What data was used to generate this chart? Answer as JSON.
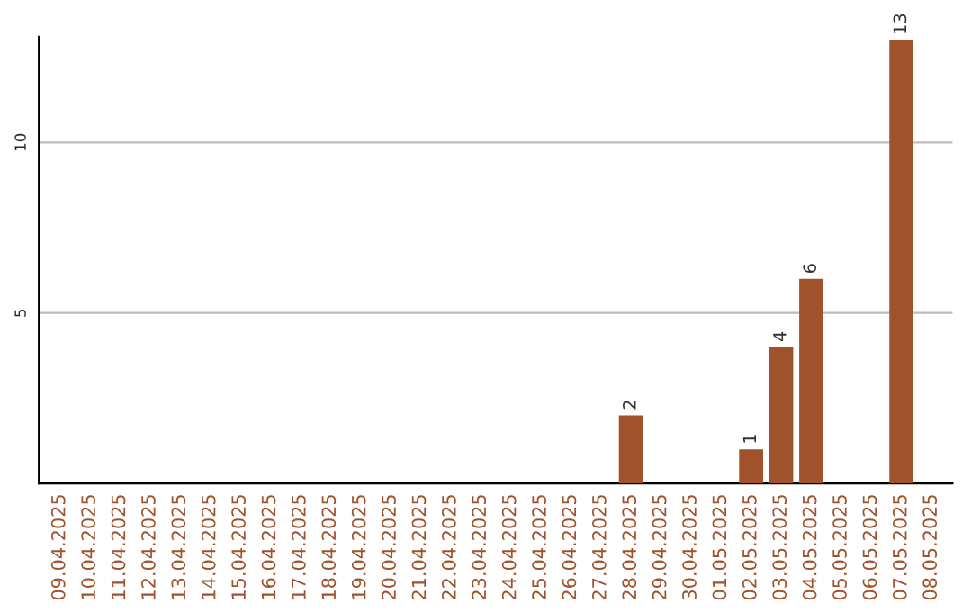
{
  "chart_data": {
    "type": "bar",
    "categories": [
      "09.04.2025",
      "10.04.2025",
      "11.04.2025",
      "12.04.2025",
      "13.04.2025",
      "14.04.2025",
      "15.04.2025",
      "16.04.2025",
      "17.04.2025",
      "18.04.2025",
      "19.04.2025",
      "20.04.2025",
      "21.04.2025",
      "22.04.2025",
      "23.04.2025",
      "24.04.2025",
      "25.04.2025",
      "26.04.2025",
      "27.04.2025",
      "28.04.2025",
      "29.04.2025",
      "30.04.2025",
      "01.05.2025",
      "02.05.2025",
      "03.05.2025",
      "04.05.2025",
      "05.05.2025",
      "06.05.2025",
      "07.05.2025",
      "08.05.2025"
    ],
    "values": [
      null,
      null,
      null,
      null,
      null,
      null,
      null,
      null,
      null,
      null,
      null,
      null,
      null,
      null,
      null,
      null,
      null,
      null,
      null,
      2,
      null,
      null,
      null,
      1,
      4,
      6,
      null,
      null,
      13,
      null
    ],
    "value_labels": [
      null,
      null,
      null,
      null,
      null,
      null,
      null,
      null,
      null,
      null,
      null,
      null,
      null,
      null,
      null,
      null,
      null,
      null,
      null,
      "2",
      null,
      null,
      null,
      "1",
      "4",
      "6",
      null,
      null,
      "13",
      null
    ],
    "color": "#a0522d",
    "ylim": [
      0,
      13.1
    ],
    "yticks": [
      5,
      10
    ],
    "grid": "y"
  }
}
